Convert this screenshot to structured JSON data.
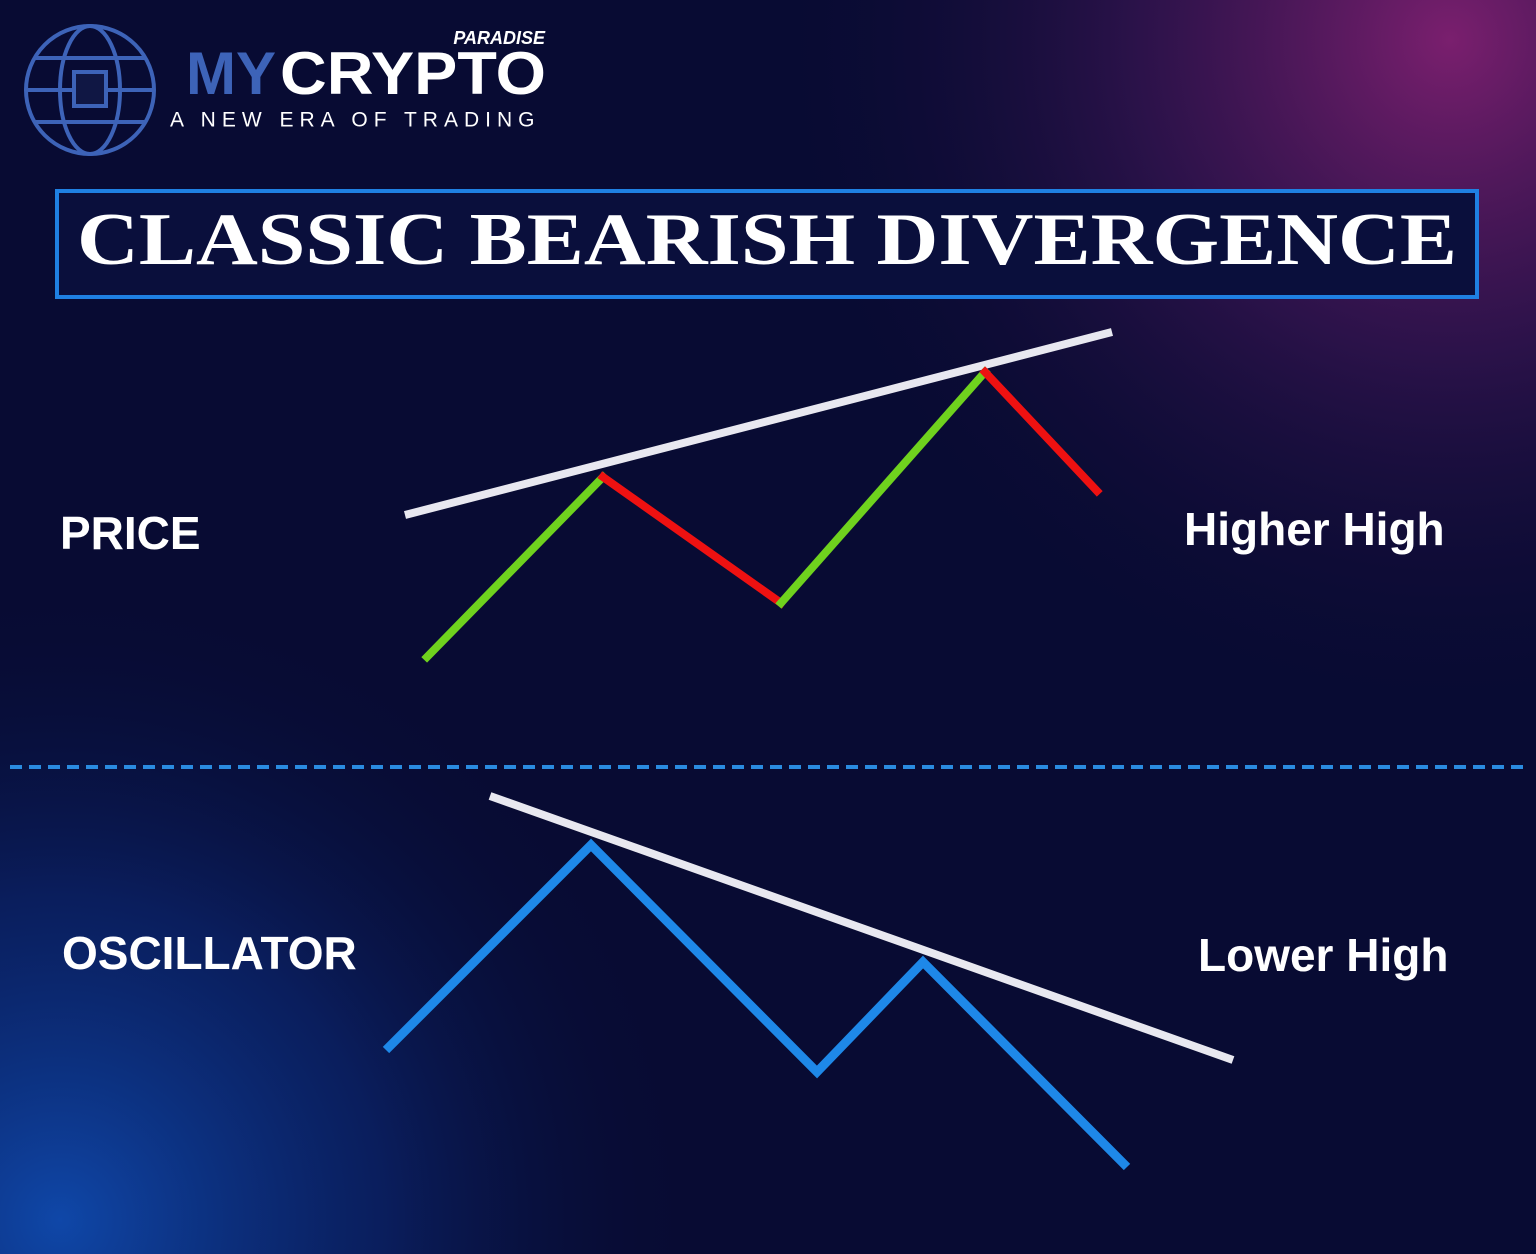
{
  "logo": {
    "tag": "PARADISE",
    "name_first": "MY",
    "name_second": "CRYPTO",
    "slogan": "A NEW ERA OF TRADING"
  },
  "title": "CLASSIC BEARISH DIVERGENCE",
  "price_panel": {
    "label": "PRICE",
    "note": "Higher High"
  },
  "oscillator_panel": {
    "label": "OSCILLATOR",
    "note": "Lower High"
  }
}
